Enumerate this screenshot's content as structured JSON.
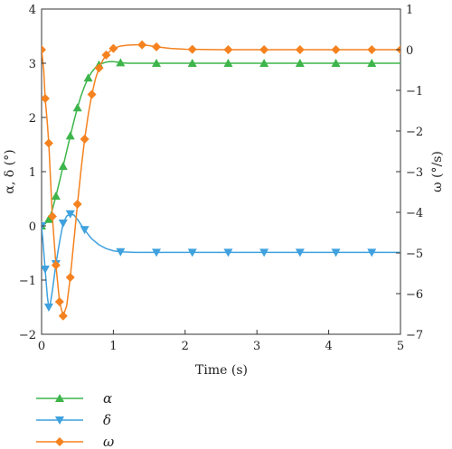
{
  "chart_data": {
    "type": "line",
    "xlabel": "Time (s)",
    "ylabel_left": "α, δ (°)",
    "ylabel_right": "ω (°/s)",
    "xlim": [
      0,
      5
    ],
    "ylim_left": [
      -2,
      4
    ],
    "ylim_right": [
      -7,
      1
    ],
    "x_ticks": [
      "0",
      "1",
      "2",
      "3",
      "4",
      "5"
    ],
    "y_left_ticks": [
      "−2",
      "−1",
      "0",
      "1",
      "2",
      "3",
      "4"
    ],
    "y_right_ticks": [
      "−7",
      "−6",
      "−5",
      "−4",
      "−3",
      "−2",
      "−1",
      "0",
      "1"
    ],
    "grid": false,
    "legend_position": "bottom-left",
    "series": [
      {
        "name": "α",
        "axis": "left",
        "color": "#3db54a",
        "marker": "triangle-up",
        "x": [
          0,
          0.05,
          0.1,
          0.15,
          0.2,
          0.25,
          0.3,
          0.35,
          0.4,
          0.45,
          0.5,
          0.55,
          0.6,
          0.65,
          0.7,
          0.75,
          0.8,
          0.85,
          0.9,
          0.95,
          1.0,
          1.05,
          1.1,
          1.2,
          1.4,
          1.6,
          2.0,
          2.5,
          3.0,
          3.5,
          4.0,
          4.5,
          5.0
        ],
        "y": [
          0,
          0.04,
          0.12,
          0.3,
          0.55,
          0.82,
          1.1,
          1.38,
          1.66,
          1.93,
          2.18,
          2.4,
          2.58,
          2.73,
          2.84,
          2.92,
          2.97,
          3.0,
          3.02,
          3.03,
          3.03,
          3.02,
          3.01,
          3.0,
          3.0,
          3.0,
          3.0,
          3.0,
          3.0,
          3.0,
          3.0,
          3.0,
          3.0
        ],
        "marker_x": [
          0,
          0.1,
          0.2,
          0.3,
          0.4,
          0.5,
          0.65,
          0.8,
          1.1,
          1.6,
          2.1,
          2.6,
          3.1,
          3.6,
          4.1,
          4.6
        ]
      },
      {
        "name": "δ",
        "axis": "left",
        "color": "#3fa1de",
        "marker": "triangle-down",
        "x": [
          0,
          0.02,
          0.05,
          0.08,
          0.1,
          0.12,
          0.15,
          0.18,
          0.2,
          0.25,
          0.3,
          0.35,
          0.4,
          0.45,
          0.5,
          0.55,
          0.6,
          0.65,
          0.7,
          0.8,
          0.9,
          1.0,
          1.1,
          1.3,
          1.6,
          2.0,
          2.5,
          3.0,
          3.5,
          4.0,
          4.5,
          5.0
        ],
        "y": [
          0,
          -0.3,
          -0.8,
          -1.3,
          -1.5,
          -1.45,
          -1.2,
          -0.9,
          -0.7,
          -0.3,
          0.05,
          0.18,
          0.22,
          0.2,
          0.12,
          0.02,
          -0.07,
          -0.16,
          -0.24,
          -0.35,
          -0.42,
          -0.46,
          -0.48,
          -0.49,
          -0.49,
          -0.49,
          -0.49,
          -0.49,
          -0.49,
          -0.49,
          -0.49,
          -0.49
        ],
        "marker_x": [
          0,
          0.05,
          0.1,
          0.2,
          0.3,
          0.4,
          0.6,
          1.1,
          1.6,
          2.1,
          2.6,
          3.1,
          3.6,
          4.1,
          4.6
        ]
      },
      {
        "name": "ω",
        "axis": "right",
        "color": "#f5821f",
        "marker": "diamond",
        "x": [
          0,
          0.03,
          0.05,
          0.08,
          0.1,
          0.15,
          0.2,
          0.25,
          0.3,
          0.35,
          0.4,
          0.45,
          0.5,
          0.55,
          0.6,
          0.65,
          0.7,
          0.75,
          0.8,
          0.85,
          0.9,
          0.95,
          1.0,
          1.1,
          1.2,
          1.3,
          1.4,
          1.5,
          1.6,
          1.8,
          2.0,
          2.5,
          3.0,
          3.5,
          4.0,
          4.5,
          5.0
        ],
        "y": [
          0,
          -0.5,
          -1.2,
          -1.8,
          -2.3,
          -4.1,
          -5.3,
          -6.2,
          -6.55,
          -6.3,
          -5.6,
          -4.7,
          -3.8,
          -2.95,
          -2.2,
          -1.6,
          -1.1,
          -0.72,
          -0.45,
          -0.27,
          -0.13,
          -0.04,
          0.03,
          0.09,
          0.11,
          0.12,
          0.12,
          0.1,
          0.07,
          0.03,
          0.01,
          0.0,
          0.0,
          0.0,
          0.0,
          0.0,
          0.0
        ],
        "marker_x": [
          0,
          0.05,
          0.1,
          0.15,
          0.2,
          0.25,
          0.3,
          0.4,
          0.5,
          0.6,
          0.7,
          0.8,
          0.9,
          1.0,
          1.4,
          1.6,
          2.1,
          2.6,
          3.1,
          3.6,
          4.1,
          4.6,
          5.0
        ]
      }
    ]
  }
}
